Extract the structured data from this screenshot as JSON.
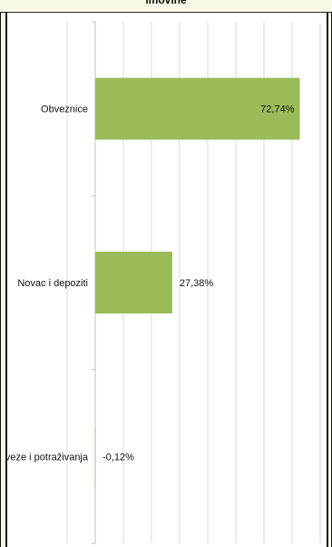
{
  "chart_data": {
    "type": "bar",
    "orientation": "horizontal",
    "title": "imovine",
    "categories": [
      "Obveznice",
      "Novac i depoziti",
      "Obveze i potraživanja"
    ],
    "values": [
      72.74,
      27.38,
      -0.12
    ],
    "data_labels": [
      "72,74%",
      "27,38%",
      "-0,12%"
    ],
    "xlim": [
      -20,
      80
    ],
    "grid": true,
    "legend": "none",
    "bar_color": "#9bbb59"
  }
}
